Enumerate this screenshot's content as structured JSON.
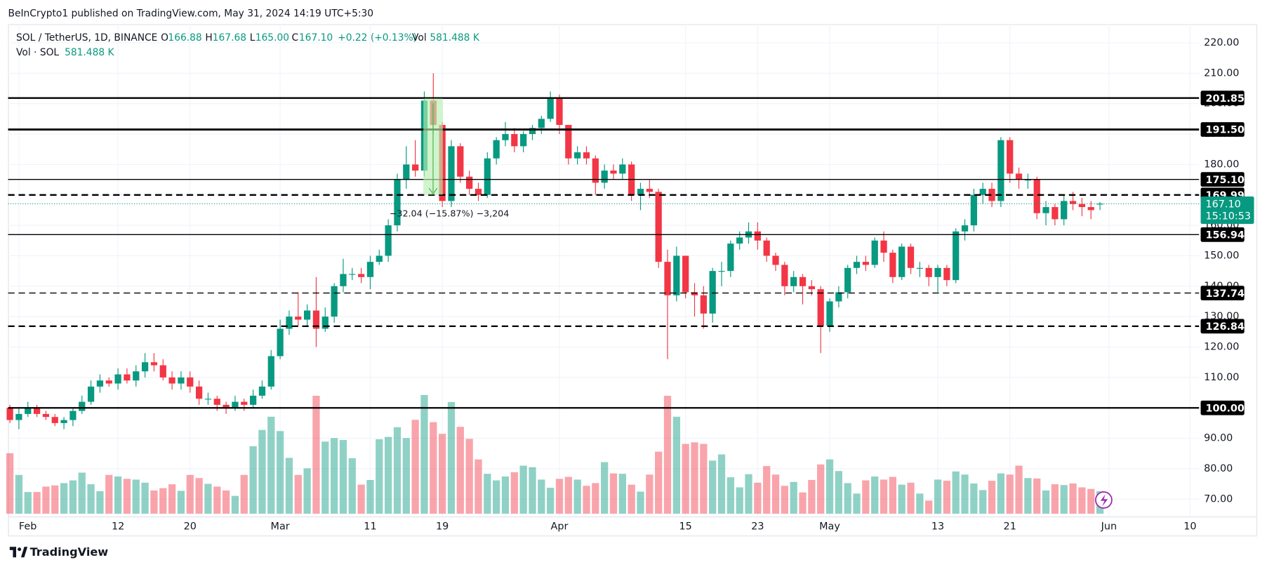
{
  "header": {
    "publisher": "BeInCrypto1 published on TradingView.com, May 31, 2024 14:19 UTC+5:30",
    "brand": "TradingView"
  },
  "chart_data": {
    "type": "candlestick",
    "symbol": "SOL / TetherUS, 1D, BINANCE",
    "legend": {
      "labels": [
        "O",
        "H",
        "L",
        "C",
        "Vol"
      ],
      "values": [
        "166.88",
        "167.68",
        "165.00",
        "167.10",
        "581.488 K"
      ],
      "change": "+0.22 (+0.13%)"
    },
    "volume_legend": {
      "label": "Vol · SOL",
      "value": "581.488 K"
    },
    "up_color": "#089981",
    "down_color": "#f23645",
    "volume_opacity": 0.45,
    "x": [
      -1,
      0,
      1,
      2,
      3,
      4,
      5,
      6,
      7,
      8,
      9,
      10,
      11,
      12,
      13,
      14,
      15,
      16,
      17,
      18,
      19,
      20,
      21,
      22,
      23,
      24,
      25,
      26,
      27,
      28,
      29,
      30,
      31,
      32,
      33,
      34,
      35,
      36,
      37,
      38,
      39,
      40,
      41,
      42,
      43,
      44,
      45,
      46,
      47,
      48,
      49,
      50,
      51,
      52,
      53,
      54,
      55,
      56,
      57,
      58,
      59,
      60,
      61,
      62,
      63,
      64,
      65,
      66,
      67,
      68,
      69,
      70,
      71,
      72,
      73,
      74,
      75,
      76,
      77,
      78,
      79,
      80,
      81,
      82,
      83,
      84,
      85,
      86,
      87,
      88,
      89,
      90,
      91,
      92,
      93,
      94,
      95,
      96,
      97,
      98,
      99,
      100,
      101,
      102,
      103,
      104,
      105,
      106,
      107,
      108,
      109,
      110,
      111,
      112,
      113,
      114,
      115,
      116,
      117,
      118,
      119,
      120
    ],
    "open": [
      100,
      96,
      98,
      100,
      98,
      97,
      95,
      96,
      99,
      102,
      107,
      109,
      108,
      111,
      109,
      112,
      115,
      114,
      110,
      108,
      110,
      107,
      103,
      103,
      101,
      100,
      102,
      101,
      104,
      107,
      117,
      126,
      130,
      129,
      132,
      126,
      130,
      140,
      144,
      144,
      143,
      148,
      150,
      160,
      175,
      180,
      178,
      201,
      193,
      168,
      186,
      176,
      172,
      170,
      182,
      188,
      190,
      186,
      190,
      192,
      195,
      202,
      193,
      182,
      184,
      182,
      174,
      178,
      177,
      180,
      170,
      172,
      171,
      148,
      137,
      150,
      138,
      137,
      131,
      145,
      145,
      154,
      156,
      158,
      155,
      150,
      147,
      140,
      143,
      140,
      139,
      127,
      135,
      138,
      146,
      148,
      147,
      155,
      151,
      143,
      153,
      146,
      146,
      143,
      146,
      142,
      158,
      160,
      170,
      172,
      168,
      188,
      177,
      175,
      175,
      164,
      166,
      162,
      168,
      167,
      166,
      166.88
    ],
    "high": [
      101,
      100,
      102,
      101,
      99,
      98,
      97,
      100,
      104,
      109,
      111,
      110,
      113,
      113,
      114,
      118,
      118,
      116,
      112,
      112,
      112,
      109,
      105,
      104,
      102,
      104,
      103,
      106,
      109,
      119,
      129,
      132,
      138,
      134,
      143,
      133,
      141,
      149,
      146,
      146,
      150,
      152,
      162,
      177,
      186,
      188,
      204,
      210,
      194,
      188,
      187,
      178,
      174,
      184,
      189,
      194,
      192,
      191,
      193,
      196,
      204,
      203,
      193,
      186,
      186,
      183,
      180,
      180,
      182,
      181,
      174,
      175,
      172,
      152,
      153,
      150,
      141,
      140,
      146,
      148,
      155,
      158,
      161,
      161,
      156,
      151,
      148,
      145,
      144,
      142,
      140,
      136,
      140,
      147,
      150,
      150,
      156,
      158,
      152,
      154,
      154,
      148,
      147,
      147,
      147,
      159,
      162,
      172,
      174,
      174,
      189,
      189,
      179,
      177,
      176,
      168,
      167,
      170,
      171,
      169,
      168,
      167.68
    ],
    "low": [
      95,
      93,
      97,
      97,
      96,
      94,
      93,
      94,
      98,
      101,
      105,
      107,
      106,
      108,
      107,
      110,
      112,
      109,
      106,
      106,
      105,
      101,
      101,
      99,
      98,
      99,
      99,
      100,
      103,
      106,
      116,
      124,
      127,
      127,
      120,
      125,
      128,
      138,
      142,
      141,
      139,
      147,
      148,
      158,
      172,
      176,
      176,
      190,
      166,
      166,
      174,
      170,
      168,
      169,
      180,
      186,
      184,
      184,
      188,
      190,
      194,
      190,
      180,
      180,
      180,
      170,
      172,
      175,
      175,
      168,
      165,
      169,
      146,
      116,
      135,
      136,
      130,
      126,
      128,
      140,
      143,
      152,
      154,
      152,
      148,
      145,
      137,
      138,
      134,
      137,
      118,
      125,
      133,
      136,
      144,
      145,
      146,
      148,
      141,
      142,
      144,
      143,
      140,
      138,
      140,
      141,
      155,
      158,
      167,
      166,
      166,
      174,
      172,
      172,
      162,
      160,
      160,
      160,
      165,
      163,
      162,
      165
    ],
    "close": [
      96,
      98,
      100,
      98,
      97,
      95,
      96,
      99,
      102,
      107,
      109,
      108,
      111,
      109,
      112,
      115,
      114,
      110,
      108,
      110,
      107,
      103,
      103,
      101,
      100,
      102,
      101,
      104,
      107,
      117,
      126,
      130,
      129,
      132,
      126,
      130,
      140,
      144,
      144,
      143,
      148,
      150,
      160,
      175,
      180,
      178,
      201,
      193,
      168,
      186,
      176,
      172,
      170,
      182,
      188,
      190,
      186,
      190,
      192,
      195,
      202,
      193,
      182,
      184,
      182,
      174,
      178,
      177,
      180,
      170,
      172,
      171,
      148,
      137,
      150,
      138,
      137,
      131,
      145,
      145,
      154,
      156,
      158,
      155,
      150,
      147,
      140,
      143,
      140,
      139,
      127,
      135,
      138,
      146,
      148,
      147,
      155,
      151,
      143,
      153,
      146,
      146,
      143,
      146,
      142,
      158,
      160,
      170,
      172,
      168,
      188,
      177,
      175,
      175,
      164,
      166,
      162,
      168,
      167,
      166,
      165,
      167.1
    ],
    "volume": [
      1560,
      1000,
      560,
      560,
      700,
      730,
      790,
      860,
      1060,
      760,
      580,
      1000,
      960,
      900,
      880,
      800,
      600,
      660,
      760,
      590,
      1000,
      920,
      770,
      700,
      600,
      460,
      1000,
      1740,
      2160,
      2500,
      2130,
      1440,
      1000,
      1170,
      3040,
      1860,
      1950,
      1900,
      1430,
      750,
      870,
      1920,
      1980,
      2230,
      1950,
      2420,
      3060,
      2360,
      2060,
      2880,
      2240,
      1930,
      1400,
      1030,
      860,
      960,
      1070,
      1240,
      1200,
      880,
      670,
      900,
      950,
      880,
      720,
      790,
      1330,
      1040,
      1030,
      750,
      570,
      1010,
      1600,
      3040,
      2500,
      1800,
      1840,
      1800,
      1370,
      1530,
      940,
      680,
      1020,
      800,
      1230,
      1010,
      720,
      820,
      550,
      870,
      1270,
      1400,
      1100,
      790,
      520,
      860,
      960,
      880,
      950,
      750,
      800,
      520,
      340,
      880,
      850,
      1090,
      1010,
      780,
      610,
      850,
      1040,
      1010,
      1240,
      920,
      910,
      600,
      760,
      740,
      780,
      680,
      640,
      581.488
    ],
    "last_price_label": "167.10",
    "countdown": "15:10:53",
    "levels": {
      "values": [
        201.85,
        191.5,
        175.1,
        169.99,
        156.94,
        137.74,
        126.84,
        100
      ],
      "value_labels": [
        "201.85",
        "191.50",
        "175.10",
        "169.99",
        "156.94",
        "137.74",
        "126.84",
        "100.00"
      ],
      "styles": [
        "solid",
        "solid",
        "solid",
        "dashed",
        "solid",
        "dashed",
        "dashed",
        "solid"
      ],
      "widths": [
        2,
        2.5,
        1.2,
        2,
        1.2,
        1.2,
        2,
        2
      ]
    },
    "measure_label": "−32.04 (−15.87%) −3,204",
    "xlim": [
      -1.2,
      131
    ],
    "ylim": [
      65.2,
      226.1
    ],
    "yticks": [
      {
        "value": 220,
        "label": "220.00"
      },
      {
        "value": 210,
        "label": "210.00"
      },
      {
        "value": 200,
        "label": "200.00"
      },
      {
        "value": 190,
        "label": "190.00"
      },
      {
        "value": 180,
        "label": "180.00"
      },
      {
        "value": 170,
        "label": "170.00"
      },
      {
        "value": 160,
        "label": "160.00"
      },
      {
        "value": 150,
        "label": "150.00"
      },
      {
        "value": 140,
        "label": "140.00"
      },
      {
        "value": 130,
        "label": "130.00"
      },
      {
        "value": 120,
        "label": "120.00"
      },
      {
        "value": 110,
        "label": "110.00"
      },
      {
        "value": 100,
        "label": "100.00"
      },
      {
        "value": 90,
        "label": "90.00"
      },
      {
        "value": 80,
        "label": "80.00"
      },
      {
        "value": 70,
        "label": "70.00"
      }
    ],
    "xticks": [
      {
        "value": 0,
        "label": "Feb"
      },
      {
        "value": 11,
        "label": "12"
      },
      {
        "value": 19,
        "label": "20"
      },
      {
        "value": 29,
        "label": "Mar"
      },
      {
        "value": 39,
        "label": "11"
      },
      {
        "value": 47,
        "label": "19"
      },
      {
        "value": 60,
        "label": "Apr"
      },
      {
        "value": 74,
        "label": "15"
      },
      {
        "value": 82,
        "label": "23"
      },
      {
        "value": 90,
        "label": "May"
      },
      {
        "value": 102,
        "label": "13"
      },
      {
        "value": 110,
        "label": "21"
      },
      {
        "value": 121,
        "label": "Jun"
      },
      {
        "value": 130,
        "label": "10"
      }
    ],
    "grid": true
  }
}
